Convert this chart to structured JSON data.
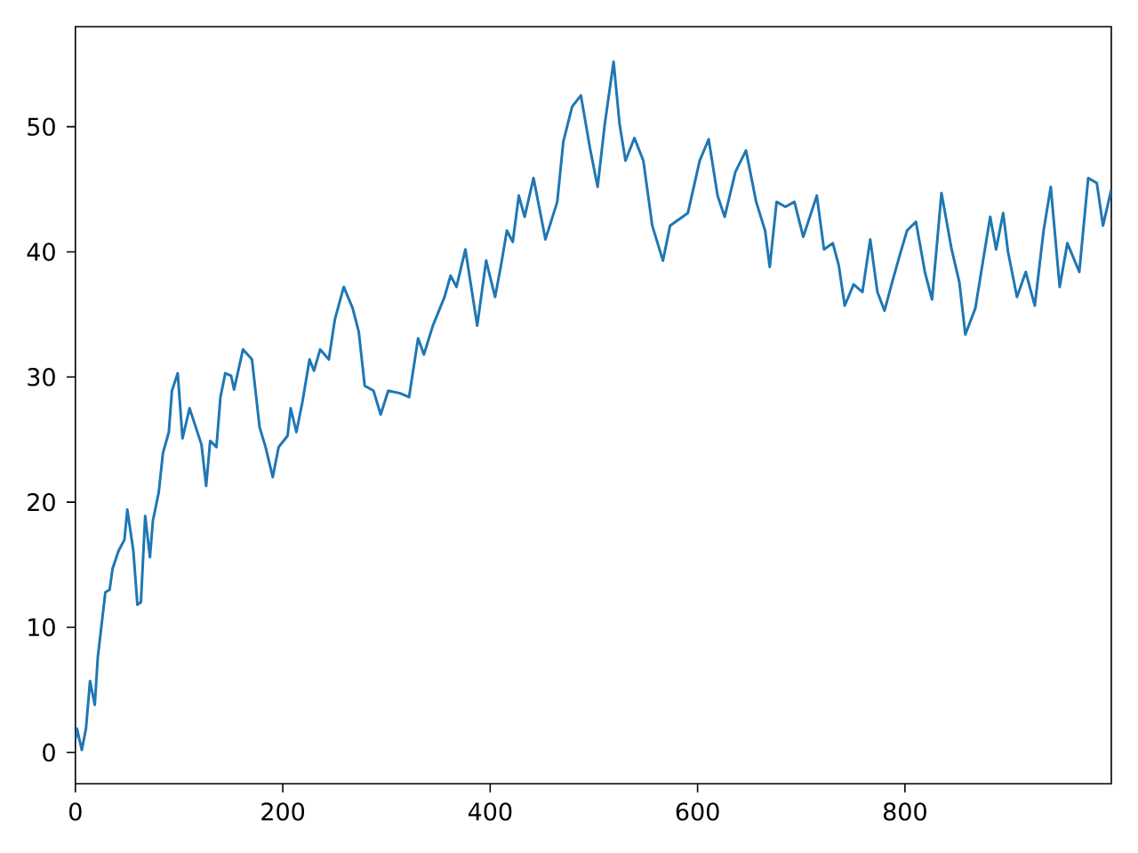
{
  "chart_data": {
    "type": "line",
    "color": "#1f77b4",
    "x": [
      0,
      1.5,
      6.2,
      10.2,
      14.1,
      18.7,
      21.6,
      28.9,
      33,
      35.9,
      41.6,
      47.3,
      50.1,
      55.9,
      59.8,
      63.2,
      67.3,
      71.9,
      74.7,
      80.4,
      84.4,
      90.1,
      93.1,
      98.7,
      103.3,
      110.1,
      121.6,
      126.1,
      130,
      136,
      139.9,
      144.5,
      150.2,
      153,
      161.6,
      170.3,
      177.6,
      183.4,
      190.3,
      196,
      204.6,
      207.6,
      213.1,
      218.9,
      225.8,
      230.1,
      236,
      244.4,
      250.2,
      258.8,
      267.4,
      273.3,
      279,
      287.5,
      294.4,
      301.7,
      313.2,
      321.8,
      330.5,
      336.1,
      344.7,
      356,
      361.8,
      367.5,
      376.1,
      387.5,
      396.1,
      404.7,
      410.4,
      416.1,
      421.8,
      427.6,
      433.2,
      441.8,
      453.3,
      464.7,
      470.5,
      479,
      487.5,
      496.2,
      503.6,
      510.5,
      519,
      524.8,
      530.5,
      539.1,
      547.7,
      556.3,
      566.6,
      573.5,
      590.6,
      602.1,
      610.7,
      619.3,
      626.1,
      636.5,
      646.7,
      656.5,
      665.1,
      669.6,
      676.2,
      684.7,
      693.4,
      701.9,
      715,
      721.9,
      730.4,
      736.2,
      741.9,
      750.5,
      759,
      766.5,
      773.4,
      780.3,
      787.7,
      795.2,
      802,
      810.6,
      819.2,
      826.1,
      835.2,
      845,
      852.4,
      858.2,
      867.9,
      875.3,
      882.2,
      887.9,
      894.7,
      899.4,
      908,
      916.5,
      925.2,
      933.7,
      940.6,
      949.2,
      956.6,
      968.1,
      976.7,
      985,
      991,
      999
    ],
    "values": [
      1.0,
      1.9,
      0.2,
      1.9,
      5.7,
      3.8,
      7.6,
      12.8,
      13,
      14.7,
      16.1,
      17.0,
      19.4,
      16.1,
      11.8,
      12,
      18.9,
      15.6,
      18.5,
      20.8,
      23.9,
      25.6,
      28.9,
      30.3,
      25.1,
      27.5,
      24.6,
      21.3,
      24.9,
      24.4,
      28.4,
      30.3,
      30.1,
      29,
      32.2,
      31.4,
      26,
      24.4,
      22,
      24.4,
      25.3,
      27.5,
      25.6,
      28,
      31.4,
      30.5,
      32.2,
      31.4,
      34.6,
      37.2,
      35.5,
      33.6,
      29.3,
      28.9,
      27,
      28.9,
      28.7,
      28.4,
      33.1,
      31.8,
      34.1,
      36.4,
      38.1,
      37.2,
      40.2,
      34.1,
      39.3,
      36.4,
      38.9,
      41.7,
      40.8,
      44.5,
      42.8,
      45.9,
      41,
      44,
      48.8,
      51.6,
      52.5,
      48.3,
      45.2,
      50.2,
      55.2,
      50.2,
      47.3,
      49.1,
      47.3,
      42.1,
      39.3,
      42.1,
      43.1,
      47.3,
      49,
      44.5,
      42.8,
      46.4,
      48.1,
      44,
      41.7,
      38.8,
      44,
      43.6,
      44,
      41.2,
      44.5,
      40.2,
      40.7,
      38.9,
      35.7,
      37.4,
      36.8,
      41,
      36.8,
      35.3,
      37.6,
      39.8,
      41.7,
      42.4,
      38.4,
      36.2,
      44.7,
      40.2,
      37.6,
      33.4,
      35.5,
      39.3,
      42.8,
      40.2,
      43.1,
      40,
      36.4,
      38.4,
      35.7,
      41.7,
      45.2,
      37.2,
      40.7,
      38.4,
      45.9,
      45.5,
      42.1,
      45
    ],
    "xlim": [
      0,
      999
    ],
    "ylim": [
      -2.5,
      58
    ],
    "xticks": [
      0,
      200,
      400,
      600,
      800
    ],
    "yticks": [
      0,
      10,
      20,
      30,
      40,
      50
    ]
  }
}
